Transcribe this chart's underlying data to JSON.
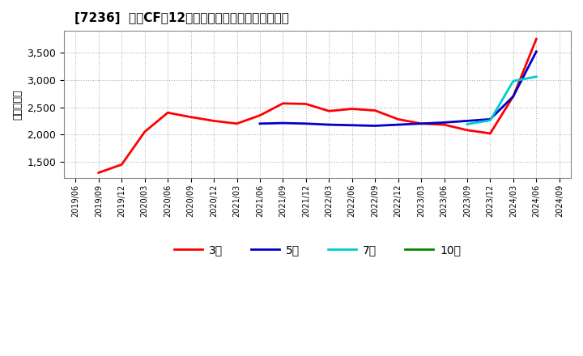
{
  "title": "[7236]  営業CFだ12か月移動合計の標準偏差の推移",
  "ylabel": "（百万円）",
  "background_color": "#ffffff",
  "plot_bg_color": "#ffffff",
  "grid_color": "#aaaaaa",
  "ylim": [
    1200,
    3900
  ],
  "yticks": [
    1500,
    2000,
    2500,
    3000,
    3500
  ],
  "series": {
    "3年": {
      "color": "#ff0000",
      "dates": [
        "2019/09",
        "2019/12",
        "2020/03",
        "2020/06",
        "2020/09",
        "2020/12",
        "2021/03",
        "2021/06",
        "2021/09",
        "2021/12",
        "2022/03",
        "2022/06",
        "2022/09",
        "2022/12",
        "2023/03",
        "2023/06",
        "2023/09",
        "2023/12",
        "2024/03",
        "2024/06"
      ],
      "values": [
        1300,
        1450,
        2050,
        2400,
        2320,
        2250,
        2200,
        2350,
        2570,
        2560,
        2430,
        2470,
        2440,
        2280,
        2200,
        2180,
        2080,
        2020,
        2700,
        3750
      ]
    },
    "5年": {
      "color": "#0000cc",
      "dates": [
        "2021/06",
        "2021/09",
        "2021/12",
        "2022/03",
        "2022/06",
        "2022/09",
        "2022/12",
        "2023/03",
        "2023/06",
        "2023/09",
        "2023/12",
        "2024/03",
        "2024/06"
      ],
      "values": [
        2200,
        2210,
        2200,
        2180,
        2170,
        2160,
        2180,
        2200,
        2220,
        2250,
        2280,
        2700,
        3520
      ]
    },
    "7年": {
      "color": "#00cccc",
      "dates": [
        "2023/09",
        "2023/12",
        "2024/03",
        "2024/06"
      ],
      "values": [
        2190,
        2260,
        2980,
        3060
      ]
    },
    "10年": {
      "color": "#008800",
      "dates": [],
      "values": []
    }
  },
  "xticks": [
    "2019/06",
    "2019/09",
    "2019/12",
    "2020/03",
    "2020/06",
    "2020/09",
    "2020/12",
    "2021/03",
    "2021/06",
    "2021/09",
    "2021/12",
    "2022/03",
    "2022/06",
    "2022/09",
    "2022/12",
    "2023/03",
    "2023/06",
    "2023/09",
    "2023/12",
    "2024/03",
    "2024/06",
    "2024/09"
  ],
  "legend_entries": [
    "3年",
    "5年",
    "7年",
    "10年"
  ]
}
